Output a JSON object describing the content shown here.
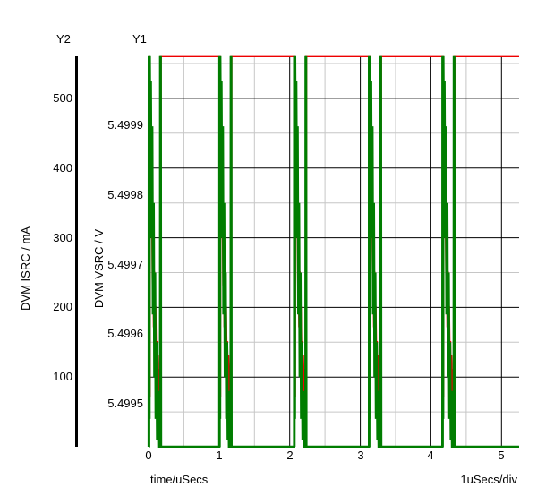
{
  "colors": {
    "background": "#ffffff",
    "text": "#000000",
    "grid_major": "#000000",
    "grid_minor": "#c6c6c6",
    "vsrc_trace": "#ee0000",
    "isrc_trace": "#007d00",
    "axis_line": "#000000"
  },
  "chart_data": {
    "type": "line",
    "x": {
      "label": "time/uSecs",
      "scale_label": "1uSecs/div",
      "ticks": [
        "0",
        "1",
        "2",
        "3",
        "4",
        "5"
      ],
      "tick_values": [
        0,
        1,
        2,
        3,
        4,
        5
      ],
      "minor_tick_values": [
        0.5,
        1.5,
        2.5,
        3.5,
        4.5
      ],
      "range": [
        0,
        5.25
      ]
    },
    "y1": {
      "name": "Y1",
      "label": "DVM VSRC / V",
      "tick_labels": [
        "5.4999",
        "5.4998",
        "5.4997",
        "5.4996",
        "5.4995"
      ],
      "tick_values": [
        5.4999,
        5.4998,
        5.4997,
        5.4996,
        5.4995
      ],
      "range": [
        5.500001,
        5.499438
      ]
    },
    "y2": {
      "name": "Y2",
      "label": "DVM ISRC / mA",
      "tick_labels": [
        "500",
        "400",
        "300",
        "200",
        "100"
      ],
      "tick_values": [
        500,
        400,
        300,
        200,
        100
      ],
      "minor_tick_values": [
        550,
        450,
        350,
        250,
        150,
        50
      ],
      "range": [
        561.6,
        0
      ]
    },
    "series": [
      {
        "name": "DVM VSRC",
        "axis": "y1",
        "color_key": "vsrc_trace",
        "baseline": 5.5,
        "burst_starts": [
          0.0,
          1.0,
          2.06,
          3.12,
          4.16
        ],
        "burst_shape": [
          [
            0.0,
            5.5
          ],
          [
            0.008,
            5.5
          ],
          [
            0.009,
            5.49954
          ],
          [
            0.015,
            5.49951
          ],
          [
            0.017,
            5.49988
          ],
          [
            0.028,
            5.49981
          ],
          [
            0.032,
            5.49987
          ],
          [
            0.044,
            5.49974
          ],
          [
            0.048,
            5.49981
          ],
          [
            0.06,
            5.49967
          ],
          [
            0.064,
            5.49975
          ],
          [
            0.076,
            5.49961
          ],
          [
            0.08,
            5.49969
          ],
          [
            0.092,
            5.49957
          ],
          [
            0.096,
            5.49964
          ],
          [
            0.108,
            5.49954
          ],
          [
            0.112,
            5.49959
          ],
          [
            0.124,
            5.49952
          ],
          [
            0.128,
            5.49957
          ],
          [
            0.142,
            5.49951
          ],
          [
            0.148,
            5.49955
          ],
          [
            0.17,
            5.49951
          ],
          [
            0.173,
            5.5
          ],
          [
            0.2,
            5.5
          ]
        ]
      },
      {
        "name": "DVM ISRC",
        "axis": "y2",
        "color_key": "isrc_trace",
        "baseline": 0,
        "burst_starts": [
          0.0,
          1.0,
          2.06,
          3.12,
          4.16
        ],
        "burst_shape": [
          [
            0.0,
            0
          ],
          [
            0.003,
            0
          ],
          [
            0.004,
            562
          ],
          [
            0.007,
            0
          ],
          [
            0.01,
            562
          ],
          [
            0.013,
            40
          ],
          [
            0.016,
            562
          ],
          [
            0.024,
            420
          ],
          [
            0.032,
            525
          ],
          [
            0.042,
            300
          ],
          [
            0.052,
            460
          ],
          [
            0.062,
            190
          ],
          [
            0.072,
            350
          ],
          [
            0.082,
            100
          ],
          [
            0.092,
            250
          ],
          [
            0.102,
            40
          ],
          [
            0.112,
            150
          ],
          [
            0.122,
            10
          ],
          [
            0.132,
            80
          ],
          [
            0.14,
            0
          ],
          [
            0.163,
            0
          ],
          [
            0.165,
            562
          ],
          [
            0.169,
            0
          ],
          [
            0.172,
            562
          ],
          [
            0.176,
            0
          ],
          [
            0.2,
            0
          ]
        ]
      }
    ],
    "grid": true,
    "legend": "none"
  }
}
